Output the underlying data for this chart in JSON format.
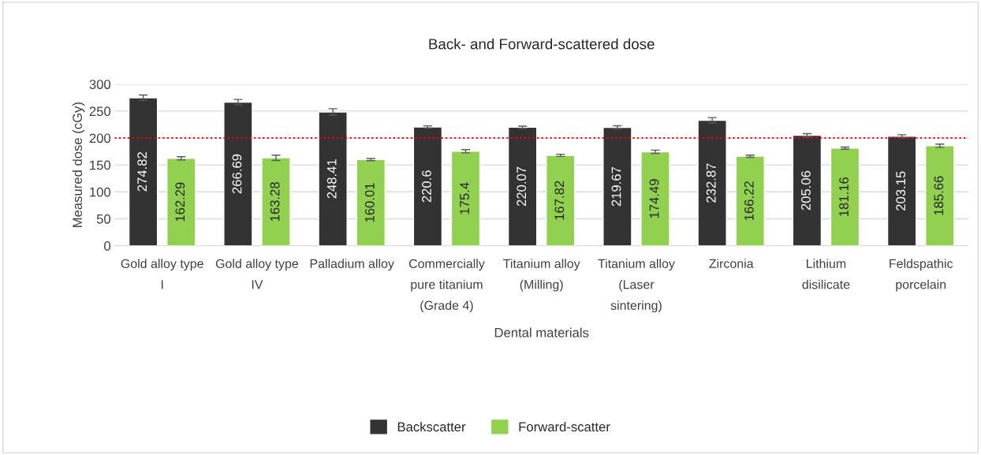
{
  "chart_data": {
    "type": "bar",
    "title": "Back- and Forward-scattered dose",
    "xlabel": "Dental materials",
    "ylabel": "Measured dose (cGy)",
    "categories": [
      "Gold alloy type I",
      "Gold alloy type IV",
      "Palladium alloy",
      "Commercially pure titanium (Grade 4)",
      "Titanium alloy (Milling)",
      "Titanium alloy (Laser sintering)",
      "Zirconia",
      "Lithium disilicate",
      "Feldspathic porcelain"
    ],
    "series": [
      {
        "name": "Backscatter",
        "color": "#333333",
        "values": [
          274.82,
          266.69,
          248.41,
          220.6,
          220.07,
          219.67,
          232.87,
          205.06,
          203.15
        ],
        "errors": [
          5,
          5,
          6,
          2,
          2,
          3,
          5,
          3,
          3
        ]
      },
      {
        "name": "Forward-scatter",
        "color": "#92d050",
        "values": [
          162.29,
          163.28,
          160.01,
          175.4,
          167.82,
          174.49,
          166.22,
          181.16,
          185.66
        ],
        "errors": [
          3,
          5,
          2,
          3,
          2,
          3,
          2,
          2,
          3
        ]
      }
    ],
    "ylim": [
      0,
      300
    ],
    "yticks": [
      0,
      50,
      100,
      150,
      200,
      250,
      300
    ],
    "grid": "y",
    "legend": "bottom",
    "data_labels": true,
    "ref_lines": [
      {
        "axis": "y",
        "value": 200,
        "color": "#ff0000",
        "line_style": "dotted"
      }
    ]
  }
}
